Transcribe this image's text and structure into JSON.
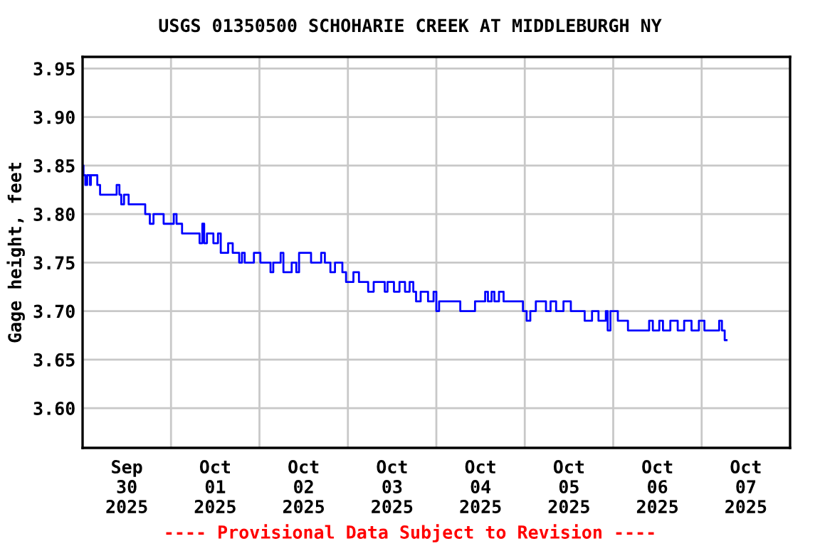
{
  "chart_data": {
    "type": "step",
    "title": "USGS 01350500 SCHOHARIE CREEK AT MIDDLEBURGH NY",
    "ylabel": "Gage height, feet",
    "annotations": [
      "---- Provisional Data Subject to Revision ----"
    ],
    "x": [
      "2025-09-30T00:00",
      "2025-09-30T00:15",
      "2025-09-30T00:45",
      "2025-09-30T01:15",
      "2025-09-30T02:00",
      "2025-09-30T02:15",
      "2025-09-30T03:00",
      "2025-09-30T04:00",
      "2025-09-30T04:45",
      "2025-09-30T05:45",
      "2025-09-30T09:15",
      "2025-09-30T10:00",
      "2025-09-30T10:30",
      "2025-09-30T11:15",
      "2025-09-30T12:30",
      "2025-09-30T17:00",
      "2025-09-30T18:15",
      "2025-09-30T19:00",
      "2025-09-30T19:15",
      "2025-09-30T22:00",
      "2025-10-01T00:45",
      "2025-10-01T01:30",
      "2025-10-01T03:00",
      "2025-10-01T07:00",
      "2025-10-01T07:45",
      "2025-10-01T08:30",
      "2025-10-01T09:00",
      "2025-10-01T09:45",
      "2025-10-01T11:30",
      "2025-10-01T12:45",
      "2025-10-01T13:30",
      "2025-10-01T15:30",
      "2025-10-01T16:45",
      "2025-10-01T18:30",
      "2025-10-01T19:15",
      "2025-10-01T20:00",
      "2025-10-01T22:30",
      "2025-10-02T00:15",
      "2025-10-02T03:00",
      "2025-10-02T03:45",
      "2025-10-02T05:45",
      "2025-10-02T06:30",
      "2025-10-02T08:45",
      "2025-10-02T10:00",
      "2025-10-02T10:45",
      "2025-10-02T14:00",
      "2025-10-02T16:45",
      "2025-10-02T17:45",
      "2025-10-02T19:15",
      "2025-10-02T20:30",
      "2025-10-02T22:30",
      "2025-10-02T23:30",
      "2025-10-03T01:30",
      "2025-10-03T03:00",
      "2025-10-03T05:30",
      "2025-10-03T07:00",
      "2025-10-03T10:00",
      "2025-10-03T10:45",
      "2025-10-03T12:30",
      "2025-10-03T14:00",
      "2025-10-03T15:30",
      "2025-10-03T16:45",
      "2025-10-03T17:45",
      "2025-10-03T18:30",
      "2025-10-03T19:45",
      "2025-10-03T21:45",
      "2025-10-03T23:15",
      "2025-10-04T00:00",
      "2025-10-04T00:45",
      "2025-10-04T04:15",
      "2025-10-04T06:30",
      "2025-10-04T10:30",
      "2025-10-04T13:15",
      "2025-10-04T14:00",
      "2025-10-04T15:00",
      "2025-10-04T15:45",
      "2025-10-04T17:00",
      "2025-10-04T18:15",
      "2025-10-04T19:45",
      "2025-10-04T23:30",
      "2025-10-05T00:30",
      "2025-10-05T01:30",
      "2025-10-05T03:00",
      "2025-10-05T05:45",
      "2025-10-05T07:00",
      "2025-10-05T08:30",
      "2025-10-05T10:30",
      "2025-10-05T12:30",
      "2025-10-05T14:15",
      "2025-10-05T16:15",
      "2025-10-05T18:15",
      "2025-10-05T20:00",
      "2025-10-05T22:00",
      "2025-10-05T22:30",
      "2025-10-05T23:15",
      "2025-10-06T01:15",
      "2025-10-06T02:45",
      "2025-10-06T04:00",
      "2025-10-06T07:45",
      "2025-10-06T09:45",
      "2025-10-06T10:45",
      "2025-10-06T12:30",
      "2025-10-06T13:30",
      "2025-10-06T15:30",
      "2025-10-06T17:30",
      "2025-10-06T19:15",
      "2025-10-06T21:15",
      "2025-10-06T23:15",
      "2025-10-07T00:45",
      "2025-10-07T04:15",
      "2025-10-07T04:45",
      "2025-10-07T05:30",
      "2025-10-07T06:15",
      "2025-10-07T06:45"
    ],
    "series": [
      {
        "color": "#0000ff",
        "values": [
          3.85,
          3.84,
          3.83,
          3.84,
          3.83,
          3.84,
          3.84,
          3.83,
          3.82,
          3.82,
          3.83,
          3.82,
          3.81,
          3.82,
          3.81,
          3.8,
          3.79,
          3.79,
          3.8,
          3.79,
          3.8,
          3.79,
          3.78,
          3.78,
          3.77,
          3.79,
          3.77,
          3.78,
          3.77,
          3.78,
          3.76,
          3.77,
          3.76,
          3.75,
          3.76,
          3.75,
          3.76,
          3.75,
          3.74,
          3.75,
          3.76,
          3.74,
          3.75,
          3.74,
          3.76,
          3.75,
          3.76,
          3.75,
          3.74,
          3.75,
          3.74,
          3.73,
          3.74,
          3.73,
          3.72,
          3.73,
          3.72,
          3.73,
          3.72,
          3.73,
          3.72,
          3.73,
          3.72,
          3.71,
          3.72,
          3.71,
          3.72,
          3.7,
          3.71,
          3.71,
          3.7,
          3.71,
          3.72,
          3.71,
          3.72,
          3.71,
          3.72,
          3.71,
          3.71,
          3.7,
          3.69,
          3.7,
          3.71,
          3.7,
          3.71,
          3.7,
          3.71,
          3.7,
          3.7,
          3.69,
          3.7,
          3.69,
          3.7,
          3.68,
          3.7,
          3.69,
          3.69,
          3.68,
          3.68,
          3.69,
          3.68,
          3.69,
          3.68,
          3.69,
          3.68,
          3.69,
          3.68,
          3.69,
          3.68,
          3.68,
          3.69,
          3.68,
          3.67,
          3.67
        ]
      }
    ],
    "xlim": [
      "2025-09-30T00:00",
      "2025-10-08T00:00"
    ],
    "xticks": [
      {
        "value": "2025-09-30T00:00",
        "label": null
      },
      {
        "value": "2025-09-30T12:00",
        "label": "Sep\n30\n2025"
      },
      {
        "value": "2025-10-01T00:00",
        "label": null
      },
      {
        "value": "2025-10-01T12:00",
        "label": "Oct\n01\n2025"
      },
      {
        "value": "2025-10-02T00:00",
        "label": null
      },
      {
        "value": "2025-10-02T12:00",
        "label": "Oct\n02\n2025"
      },
      {
        "value": "2025-10-03T00:00",
        "label": null
      },
      {
        "value": "2025-10-03T12:00",
        "label": "Oct\n03\n2025"
      },
      {
        "value": "2025-10-04T00:00",
        "label": null
      },
      {
        "value": "2025-10-04T12:00",
        "label": "Oct\n04\n2025"
      },
      {
        "value": "2025-10-05T00:00",
        "label": null
      },
      {
        "value": "2025-10-05T12:00",
        "label": "Oct\n05\n2025"
      },
      {
        "value": "2025-10-06T00:00",
        "label": null
      },
      {
        "value": "2025-10-06T12:00",
        "label": "Oct\n06\n2025"
      },
      {
        "value": "2025-10-07T00:00",
        "label": null
      },
      {
        "value": "2025-10-07T12:00",
        "label": "Oct\n07\n2025"
      },
      {
        "value": "2025-10-08T00:00",
        "label": null
      }
    ],
    "ylim": [
      3.559,
      3.962
    ],
    "yticks": [
      {
        "value": 3.6,
        "label": "3.60"
      },
      {
        "value": 3.65,
        "label": "3.65"
      },
      {
        "value": 3.7,
        "label": "3.70"
      },
      {
        "value": 3.75,
        "label": "3.75"
      },
      {
        "value": 3.8,
        "label": "3.80"
      },
      {
        "value": 3.85,
        "label": "3.85"
      },
      {
        "value": 3.9,
        "label": "3.90"
      },
      {
        "value": 3.95,
        "label": "3.95"
      }
    ],
    "grid": true,
    "line_style": "solid",
    "marker": "none"
  }
}
